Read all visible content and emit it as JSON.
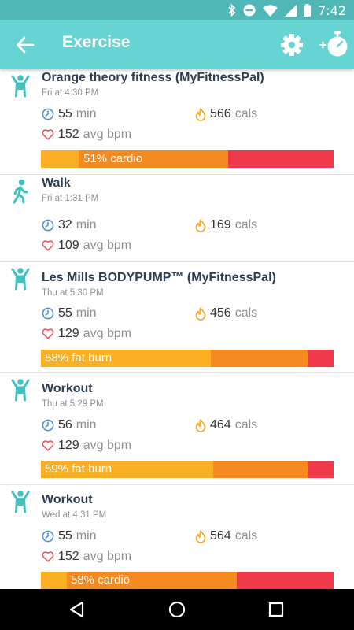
{
  "status_bar": {
    "time": "7:42"
  },
  "header": {
    "title": "Exercise"
  },
  "colors": {
    "header": "#66d4d2",
    "status_bar": "#4fb8b6",
    "teal_icon": "#3fc2c0",
    "clock_icon": "#4a90d9",
    "flame_icon": "#f5a623",
    "heart_icon": "#e9575f",
    "zone_fat_burn": "#fbb024",
    "zone_cardio": "#f58a20",
    "zone_peak": "#f03a4b"
  },
  "units": {
    "min": "min",
    "cals": "cals",
    "bpm": "avg bpm"
  },
  "exercises": [
    {
      "icon": "workout-icon",
      "title": "Orange theory fitness (MyFitnessPal)",
      "time": "Fri at 4:30 PM",
      "duration": "55",
      "calories": "566",
      "bpm": "152",
      "zone_label": "51% cardio",
      "zones": {
        "fat_burn": 0.13,
        "cardio": 0.51,
        "peak": 0.36
      }
    },
    {
      "icon": "walk-icon",
      "title": "Walk",
      "time": "Fri at 1:31 PM",
      "duration": "32",
      "calories": "169",
      "bpm": "109"
    },
    {
      "icon": "workout-icon",
      "title": "Les Mills BODYPUMP™ (MyFitnessPal)",
      "time": "Thu at 5:30 PM",
      "duration": "55",
      "calories": "456",
      "bpm": "129",
      "zone_label": "58% fat burn",
      "zones": {
        "fat_burn": 0.58,
        "cardio": 0.33,
        "peak": 0.09
      }
    },
    {
      "icon": "workout-icon",
      "title": "Workout",
      "time": "Thu at 5:29 PM",
      "duration": "56",
      "calories": "464",
      "bpm": "129",
      "zone_label": "59% fat burn",
      "zones": {
        "fat_burn": 0.59,
        "cardio": 0.32,
        "peak": 0.09
      }
    },
    {
      "icon": "workout-icon",
      "title": "Workout",
      "time": "Wed at 4:31 PM",
      "duration": "55",
      "calories": "564",
      "bpm": "152",
      "zone_label": "58% cardio",
      "zones": {
        "fat_burn": 0.09,
        "cardio": 0.58,
        "peak": 0.33
      }
    }
  ]
}
